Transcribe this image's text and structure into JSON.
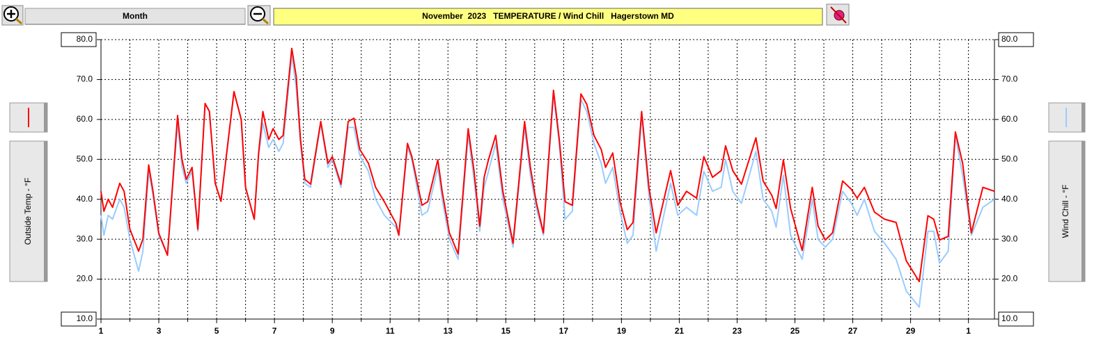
{
  "toolbar": {
    "range_button": "Month"
  },
  "chart_data": {
    "type": "line",
    "title": "November  2023   TEMPERATURE / Wind Chill   Hagerstown MD",
    "ylabel": "Outside Temp - °F",
    "y2label": "Wind Chill - °F",
    "x": [
      1.0,
      1.1,
      1.25,
      1.4,
      1.65,
      1.8,
      2.0,
      2.3,
      2.45,
      2.65,
      2.8,
      3.0,
      3.3,
      3.65,
      3.8,
      3.95,
      4.15,
      4.35,
      4.6,
      4.75,
      4.95,
      5.15,
      5.6,
      5.85,
      6.0,
      6.3,
      6.45,
      6.6,
      6.8,
      6.95,
      7.15,
      7.3,
      7.6,
      7.75,
      7.9,
      8.05,
      8.25,
      8.6,
      8.85,
      9.0,
      9.3,
      9.55,
      9.75,
      9.95,
      10.25,
      10.5,
      10.8,
      11.2,
      11.3,
      11.6,
      11.75,
      12.1,
      12.3,
      12.65,
      12.8,
      13.05,
      13.35,
      13.7,
      13.9,
      14.1,
      14.25,
      14.4,
      14.65,
      14.9,
      15.25,
      15.65,
      15.85,
      16.05,
      16.3,
      16.65,
      16.85,
      17.05,
      17.3,
      17.6,
      17.8,
      18.05,
      18.3,
      18.45,
      18.7,
      18.95,
      19.2,
      19.4,
      19.7,
      19.95,
      20.2,
      20.7,
      20.95,
      21.25,
      21.6,
      21.85,
      22.15,
      22.45,
      22.6,
      22.85,
      23.15,
      23.65,
      23.9,
      24.2,
      24.35,
      24.6,
      24.85,
      25.25,
      25.6,
      25.8,
      26.05,
      26.3,
      26.65,
      26.95,
      27.15,
      27.4,
      27.75,
      28.1,
      28.5,
      28.85,
      29.3,
      29.6,
      29.8,
      30.0,
      30.3,
      30.55,
      30.8,
      31.1,
      31.5,
      31.9
    ],
    "series": [
      {
        "name": "Outside Temp - °F",
        "color": "#ff0000",
        "values": [
          42,
          37,
          40,
          38,
          44,
          42,
          32.5,
          27,
          30,
          48.6,
          42,
          31.5,
          26,
          61,
          50,
          45,
          48,
          32.5,
          64,
          62,
          44,
          39.5,
          67,
          60,
          43,
          35,
          51.5,
          62,
          55,
          57.7,
          55,
          56,
          77.8,
          70.8,
          55,
          45,
          43.8,
          59.5,
          49,
          50.7,
          43.8,
          59.5,
          60.3,
          52.5,
          49,
          43,
          39.4,
          34,
          31,
          54,
          50.7,
          38.5,
          39.4,
          49.9,
          42,
          31.6,
          26.3,
          57.7,
          47.2,
          33.3,
          45.5,
          49.9,
          56,
          42,
          29,
          59.5,
          48,
          39.4,
          31.6,
          67.3,
          55,
          39.4,
          38.5,
          66.4,
          63.8,
          56,
          52.5,
          48,
          51.6,
          39.4,
          32.4,
          34.2,
          62,
          43,
          31.6,
          47.2,
          38.5,
          42,
          40.3,
          50.7,
          45.5,
          47.2,
          53.4,
          47.2,
          43.8,
          55.4,
          44.6,
          41,
          37.7,
          49.9,
          37.7,
          27.2,
          43,
          33.3,
          29.8,
          31.6,
          44.6,
          42.5,
          40.3,
          43,
          36.8,
          35,
          34.2,
          24.6,
          19.4,
          35.9,
          35,
          29.8,
          30.7,
          56.9,
          49,
          31.6,
          43,
          42
        ]
      },
      {
        "name": "Wind Chill - °F",
        "color": "#99ccff",
        "axis": "y2",
        "values": [
          36,
          31,
          36,
          35,
          40,
          38,
          30,
          22,
          27,
          47,
          41,
          31,
          26,
          59,
          48,
          44,
          47,
          32,
          64,
          62,
          44,
          39.5,
          67,
          60,
          43,
          35,
          51,
          59,
          53,
          55,
          52,
          54,
          76,
          68,
          54,
          44,
          43,
          59,
          48,
          50,
          43,
          58,
          58,
          51,
          47,
          40,
          36,
          33,
          31,
          53,
          50,
          36,
          37,
          48,
          40,
          30,
          25,
          56,
          45,
          32,
          43,
          47,
          54,
          40,
          28,
          58,
          46,
          38,
          31,
          66,
          54,
          35,
          37,
          65,
          62,
          54,
          49,
          44,
          48,
          37,
          29,
          31,
          61,
          41,
          27,
          44,
          36,
          38,
          36,
          47,
          42,
          43,
          50,
          42,
          39,
          52,
          40,
          37,
          33,
          46,
          31,
          25,
          40,
          30,
          28,
          30,
          42,
          39,
          36,
          40,
          32,
          29,
          25,
          17,
          13,
          32,
          32,
          24,
          27,
          56,
          46,
          31,
          38,
          40
        ]
      }
    ],
    "xlim": [
      1,
      31.9
    ],
    "xticks": [
      1,
      3,
      5,
      7,
      9,
      11,
      13,
      15,
      17,
      19,
      21,
      23,
      25,
      27,
      29,
      {
        "value": 31,
        "label": "1"
      }
    ],
    "x_minor_ticks": [
      2,
      4,
      6,
      8,
      10,
      12,
      14,
      16,
      18,
      20,
      22,
      24,
      26,
      28,
      30
    ],
    "ylim": [
      10,
      80
    ],
    "yticks": [
      {
        "value": 10,
        "label": "10.0"
      },
      {
        "value": 20,
        "label": "20.0"
      },
      {
        "value": 30,
        "label": "30.0"
      },
      {
        "value": 40,
        "label": "40.0"
      },
      {
        "value": 50,
        "label": "50.0"
      },
      {
        "value": 60,
        "label": "60.0"
      },
      {
        "value": 70,
        "label": "70.0"
      },
      {
        "value": 80,
        "label": "80.0"
      }
    ],
    "y2lim": [
      10,
      80
    ],
    "y2ticks": [
      {
        "value": 10,
        "label": "10.0"
      },
      {
        "value": 20,
        "label": "20.0"
      },
      {
        "value": 30,
        "label": "30.0"
      },
      {
        "value": 40,
        "label": "40.0"
      },
      {
        "value": 50,
        "label": "50.0"
      },
      {
        "value": 60,
        "label": "60.0"
      },
      {
        "value": 70,
        "label": "70.0"
      },
      {
        "value": 80,
        "label": "80.0"
      }
    ],
    "grid": true
  }
}
